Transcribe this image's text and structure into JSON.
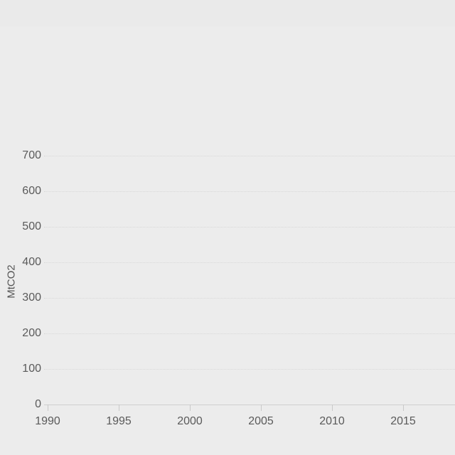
{
  "chart_data": {
    "type": "line",
    "title": "",
    "xlabel": "",
    "ylabel": "MtCO2",
    "x_tick_labels": [
      1990,
      1995,
      2000,
      2005,
      2010,
      2015
    ],
    "y_tick_labels": [
      0,
      100,
      200,
      300,
      400,
      500,
      600,
      700
    ],
    "xlim": [
      1990,
      2018.5
    ],
    "ylim": [
      0,
      700
    ],
    "grid": "horizontal-dotted",
    "legend_position": "none",
    "series": [],
    "notes": "Empty plot area: axes and gridlines only, no data series rendered"
  },
  "colors": {
    "background": "#eaeaea",
    "panel_background": "#ececec",
    "gridline": "#d8d8d8",
    "axis_line": "#cfcfcf",
    "tick_mark": "#c9c9c9",
    "tick_text": "#5a5a5a",
    "axis_title_text": "#555555"
  }
}
